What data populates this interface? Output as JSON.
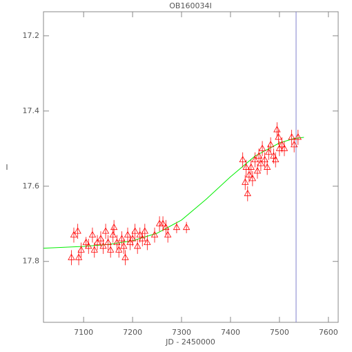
{
  "chart_data": {
    "type": "scatter",
    "title": "OB160034I",
    "x_label": "JD - 2450000",
    "y_label": "I",
    "xlim": [
      7018,
      7620
    ],
    "ylim": [
      17.962,
      17.136
    ],
    "xticks": [
      7100,
      7200,
      7300,
      7400,
      7500,
      7600
    ],
    "yticks": [
      17.2,
      17.4,
      17.6,
      17.8
    ],
    "series": [
      {
        "color": "#ff0000",
        "x": [
          7075,
          7080,
          7088,
          7090,
          7095,
          7105,
          7110,
          7118,
          7122,
          7128,
          7135,
          7140,
          7145,
          7150,
          7155,
          7160,
          7162,
          7168,
          7172,
          7178,
          7182,
          7185,
          7190,
          7195,
          7200,
          7205,
          7210,
          7215,
          7220,
          7225,
          7230,
          7245,
          7255,
          7262,
          7268,
          7272,
          7290,
          7310,
          7425,
          7430,
          7432,
          7435,
          7438,
          7442,
          7445,
          7450,
          7455,
          7458,
          7462,
          7465,
          7470,
          7475,
          7478,
          7482,
          7488,
          7492,
          7495,
          7498,
          7500,
          7505,
          7510,
          7525,
          7530,
          7538
        ],
        "values": [
          17.79,
          17.73,
          17.72,
          17.79,
          17.77,
          17.75,
          17.76,
          17.73,
          17.77,
          17.75,
          17.74,
          17.76,
          17.72,
          17.75,
          17.77,
          17.73,
          17.71,
          17.75,
          17.77,
          17.74,
          17.76,
          17.79,
          17.73,
          17.75,
          17.74,
          17.72,
          17.76,
          17.73,
          17.74,
          17.72,
          17.75,
          17.73,
          17.7,
          17.7,
          17.71,
          17.73,
          17.71,
          17.71,
          17.53,
          17.59,
          17.55,
          17.62,
          17.57,
          17.55,
          17.58,
          17.53,
          17.56,
          17.52,
          17.54,
          17.5,
          17.53,
          17.55,
          17.51,
          17.49,
          17.52,
          17.53,
          17.45,
          17.47,
          17.5,
          17.49,
          17.5,
          17.47,
          17.49,
          17.47
        ],
        "errors": [
          0.02,
          0.02,
          0.02,
          0.02,
          0.02,
          0.015,
          0.02,
          0.02,
          0.02,
          0.02,
          0.02,
          0.02,
          0.02,
          0.02,
          0.02,
          0.02,
          0.02,
          0.02,
          0.02,
          0.02,
          0.02,
          0.02,
          0.02,
          0.02,
          0.02,
          0.02,
          0.02,
          0.02,
          0.02,
          0.02,
          0.02,
          0.02,
          0.02,
          0.02,
          0.02,
          0.02,
          0.015,
          0.015,
          0.02,
          0.02,
          0.02,
          0.02,
          0.02,
          0.02,
          0.02,
          0.02,
          0.02,
          0.02,
          0.02,
          0.02,
          0.02,
          0.02,
          0.02,
          0.02,
          0.02,
          0.02,
          0.02,
          0.02,
          0.02,
          0.02,
          0.02,
          0.02,
          0.02,
          0.02
        ]
      }
    ],
    "fit": {
      "color": "#00ee00",
      "x": [
        7018,
        7100,
        7150,
        7200,
        7250,
        7300,
        7350,
        7400,
        7450,
        7500,
        7530,
        7550
      ],
      "values": [
        17.765,
        17.76,
        17.755,
        17.745,
        17.725,
        17.69,
        17.635,
        17.575,
        17.52,
        17.485,
        17.473,
        17.47
      ]
    },
    "vline": {
      "color": "#8080cc",
      "x": 7534
    }
  }
}
